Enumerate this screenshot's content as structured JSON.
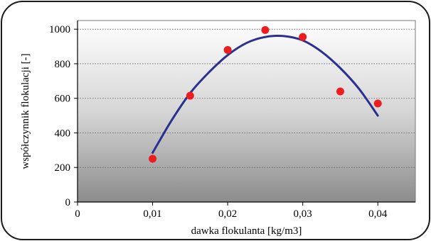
{
  "chart_data": {
    "type": "scatter",
    "title": "",
    "xlabel": "dawka flokulanta [kg/m3]",
    "ylabel": "współczynnik flokulacji [-]",
    "xlim": [
      0,
      0.045
    ],
    "ylim": [
      0,
      1050
    ],
    "x_ticks": [
      {
        "value": 0,
        "label": "0"
      },
      {
        "value": 0.01,
        "label": "0,01"
      },
      {
        "value": 0.02,
        "label": "0,02"
      },
      {
        "value": 0.03,
        "label": "0,03"
      },
      {
        "value": 0.04,
        "label": "0,04"
      }
    ],
    "y_ticks": [
      {
        "value": 0,
        "label": "0"
      },
      {
        "value": 200,
        "label": "200"
      },
      {
        "value": 400,
        "label": "400"
      },
      {
        "value": 600,
        "label": "600"
      },
      {
        "value": 800,
        "label": "800"
      },
      {
        "value": 1000,
        "label": "1000"
      }
    ],
    "grid": "horizontal dotted",
    "legend": "none",
    "series": [
      {
        "kind": "points",
        "color": "#ee1c1c",
        "points": [
          {
            "x": 0.01,
            "y": 250
          },
          {
            "x": 0.015,
            "y": 615
          },
          {
            "x": 0.02,
            "y": 880
          },
          {
            "x": 0.025,
            "y": 995
          },
          {
            "x": 0.03,
            "y": 955
          },
          {
            "x": 0.035,
            "y": 640
          },
          {
            "x": 0.04,
            "y": 570
          }
        ]
      },
      {
        "kind": "trendline",
        "color": "#2b2f8f",
        "points": [
          {
            "x": 0.01,
            "y": 285
          },
          {
            "x": 0.0125,
            "y": 470
          },
          {
            "x": 0.015,
            "y": 630
          },
          {
            "x": 0.0175,
            "y": 750
          },
          {
            "x": 0.02,
            "y": 850
          },
          {
            "x": 0.0225,
            "y": 920
          },
          {
            "x": 0.025,
            "y": 955
          },
          {
            "x": 0.0275,
            "y": 960
          },
          {
            "x": 0.03,
            "y": 935
          },
          {
            "x": 0.0325,
            "y": 870
          },
          {
            "x": 0.035,
            "y": 775
          },
          {
            "x": 0.0375,
            "y": 655
          },
          {
            "x": 0.04,
            "y": 500
          }
        ]
      }
    ]
  }
}
